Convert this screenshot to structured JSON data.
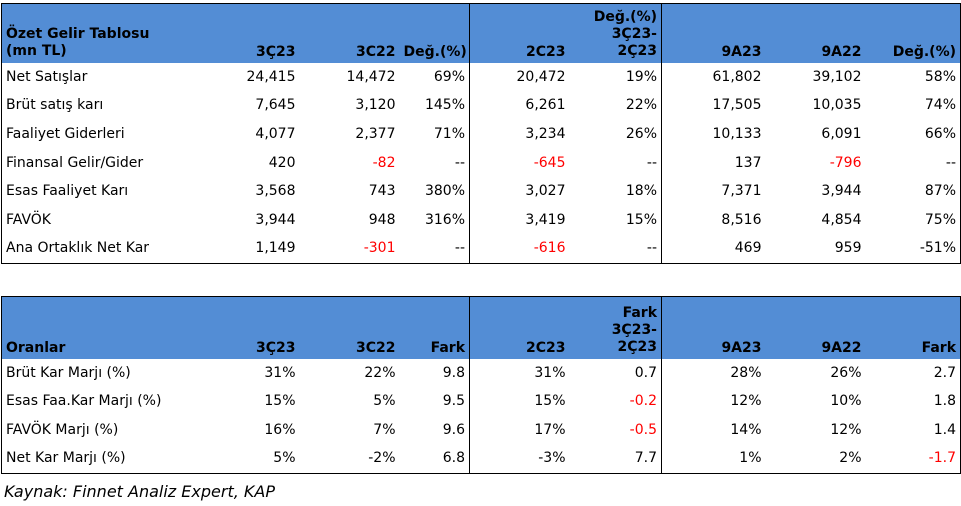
{
  "income_table": {
    "title_line1": "Özet Gelir Tablosu",
    "title_line2": "(mn TL)",
    "headers": [
      "3Ç23",
      "3C22",
      "Değ.(%)",
      "2C23",
      "Değ.(%) 3Ç23-2Ç23",
      "9A23",
      "9A22",
      "Değ.(%)"
    ],
    "header_5_line1": "Değ.(%)",
    "header_5_line2": "3Ç23-2Ç23",
    "rows": [
      {
        "label": "Net Satışlar",
        "values": [
          "24,415",
          "14,472",
          "69%",
          "20,472",
          "19%",
          "61,802",
          "39,102",
          "58%"
        ]
      },
      {
        "label": "Brüt satış karı",
        "values": [
          "7,645",
          "3,120",
          "145%",
          "6,261",
          "22%",
          "17,505",
          "10,035",
          "74%"
        ]
      },
      {
        "label": "Faaliyet Giderleri",
        "values": [
          "4,077",
          "2,377",
          "71%",
          "3,234",
          "26%",
          "10,133",
          "6,091",
          "66%"
        ]
      },
      {
        "label": "Finansal Gelir/Gider",
        "values": [
          "420",
          "-82",
          "--",
          "-645",
          "--",
          "137",
          "-796",
          "--"
        ]
      },
      {
        "label": "Esas Faaliyet Karı",
        "values": [
          "3,568",
          "743",
          "380%",
          "3,027",
          "18%",
          "7,371",
          "3,944",
          "87%"
        ]
      },
      {
        "label": "FAVÖK",
        "values": [
          "3,944",
          "948",
          "316%",
          "3,419",
          "15%",
          "8,516",
          "4,854",
          "75%"
        ]
      },
      {
        "label": "Ana Ortaklık Net Kar",
        "values": [
          "1,149",
          "-301",
          "--",
          "-616",
          "--",
          "469",
          "959",
          "-51%"
        ]
      }
    ],
    "negative_cells": [
      [
        3,
        1
      ],
      [
        3,
        3
      ],
      [
        3,
        6
      ],
      [
        6,
        1
      ],
      [
        6,
        3
      ]
    ]
  },
  "ratio_table": {
    "title": "Oranlar",
    "headers": [
      "3Ç23",
      "3C22",
      "Fark",
      "2C23",
      "Fark 3Ç23-2Ç23",
      "9A23",
      "9A22",
      "Fark"
    ],
    "header_5_line1": "Fark",
    "header_5_line2": "3Ç23-2Ç23",
    "rows": [
      {
        "label": "Brüt Kar Marjı (%)",
        "values": [
          "31%",
          "22%",
          "9.8",
          "31%",
          "0.7",
          "28%",
          "26%",
          "2.7"
        ]
      },
      {
        "label": "Esas Faa.Kar Marjı (%)",
        "values": [
          "15%",
          "5%",
          "9.5",
          "15%",
          "-0.2",
          "12%",
          "10%",
          "1.8"
        ]
      },
      {
        "label": "FAVÖK Marjı (%)",
        "values": [
          "16%",
          "7%",
          "9.6",
          "17%",
          "-0.5",
          "14%",
          "12%",
          "1.4"
        ]
      },
      {
        "label": "Net Kar Marjı (%)",
        "values": [
          "5%",
          "-2%",
          "6.8",
          "-3%",
          "7.7",
          "1%",
          "2%",
          "-1.7"
        ]
      }
    ],
    "negative_cells": [
      [
        1,
        4
      ],
      [
        2,
        4
      ],
      [
        3,
        7
      ]
    ]
  },
  "source_note": "Kaynak: Finnet Analiz Expert, KAP",
  "colors": {
    "header_bg": "#538dd5",
    "negative": "#ff0000"
  }
}
